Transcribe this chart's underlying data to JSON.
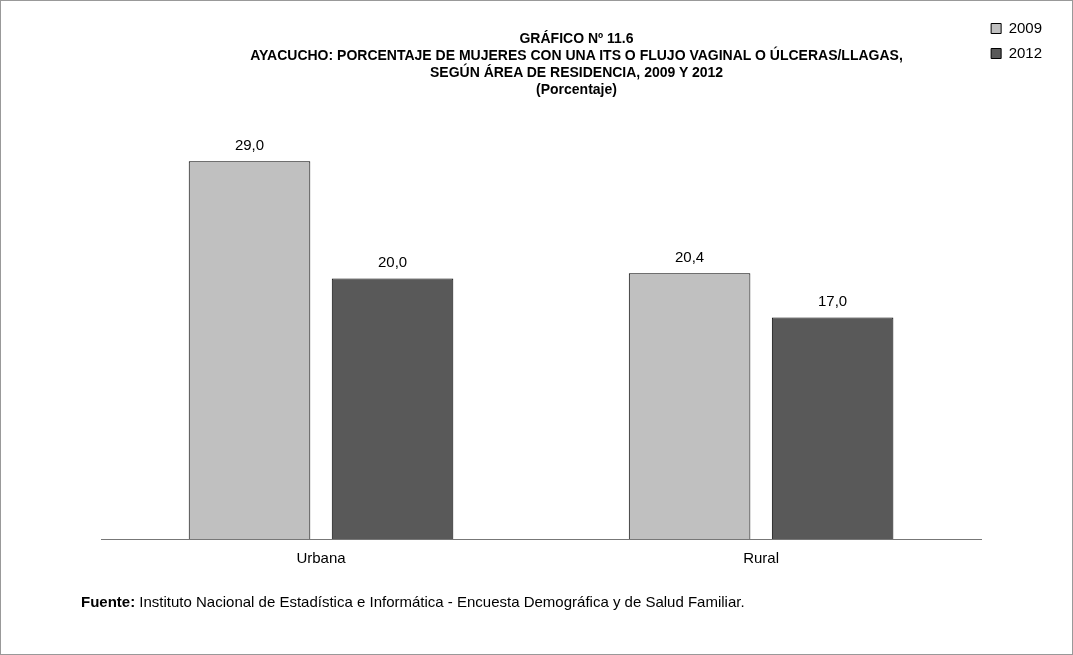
{
  "chart_data": {
    "type": "bar",
    "title": "GRÁFICO Nº 11.6",
    "subtitle": "AYACUCHO: PORCENTAJE DE MUJERES CON UNA ITS O FLUJO VAGINAL O ÚLCERAS/LLAGAS,\nSEGÚN ÁREA DE RESIDENCIA, 2009 Y 2012\n(Porcentaje)",
    "categories": [
      "Urbana",
      "Rural"
    ],
    "series": [
      {
        "name": "2009",
        "color": "#c0c0c0",
        "values": [
          29.0,
          20.4
        ],
        "value_labels": [
          "29,0",
          "20,4"
        ]
      },
      {
        "name": "2012",
        "color": "#595959",
        "values": [
          20.0,
          17.0
        ],
        "value_labels": [
          "20,0",
          "17,0"
        ]
      }
    ],
    "legend": "right",
    "grid": false,
    "annotations": [
      "Fuente: Instituto  Nacional de Estadística  e Informática - Encuesta Demográfica y de Salud Familiar."
    ]
  }
}
